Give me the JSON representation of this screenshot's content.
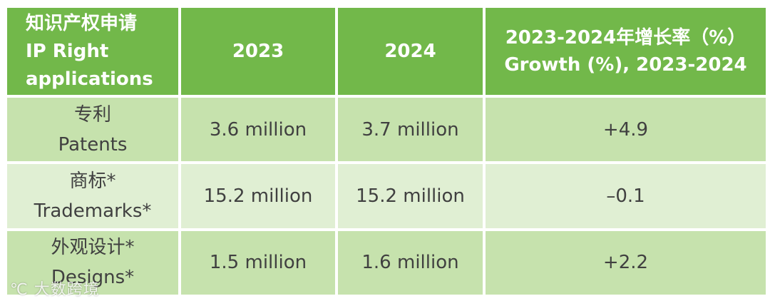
{
  "table": {
    "header": {
      "col1": [
        "知识产权申请",
        "IP Right",
        "applications"
      ],
      "col2": "2023",
      "col3": "2024",
      "col4": [
        "2023-2024年增长率（%）",
        "Growth (%), 2023-2024"
      ]
    },
    "rows": [
      {
        "label_zh": "专利",
        "label_en": "Patents",
        "v2023": "3.6 million",
        "v2024": "3.7 million",
        "growth": "+4.9"
      },
      {
        "label_zh": "商标*",
        "label_en": "Trademarks*",
        "v2023": "15.2 million",
        "v2024": "15.2 million",
        "growth": "–0.1"
      },
      {
        "label_zh": "外观设计*",
        "label_en": "Designs*",
        "v2023": "1.5 million",
        "v2024": "1.6 million",
        "growth": "+2.2"
      }
    ]
  },
  "colors": {
    "header_bg": "#72b84a",
    "row_dark_bg": "#c6e2ad",
    "row_light_bg": "#e0efd3"
  },
  "watermark": "℃ 大数跨境"
}
